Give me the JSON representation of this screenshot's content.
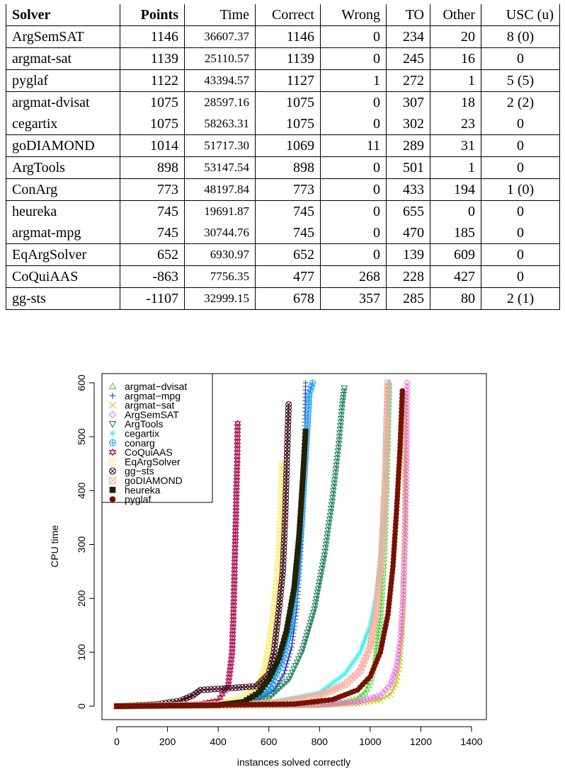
{
  "table": {
    "headers": [
      "Solver",
      "Points",
      "Time",
      "Correct",
      "Wrong",
      "TO",
      "Other",
      "USC (u)"
    ],
    "rows": [
      [
        "ArgSemSAT",
        "1146",
        "36607.37",
        "1146",
        "0",
        "234",
        "20",
        "8 (0)"
      ],
      [
        "argmat-sat",
        "1139",
        "25110.57",
        "1139",
        "0",
        "245",
        "16",
        "0"
      ],
      [
        "pyglaf",
        "1122",
        "43394.57",
        "1127",
        "1",
        "272",
        "1",
        "5 (5)"
      ],
      [
        "argmat-dvisat",
        "1075",
        "28597.16",
        "1075",
        "0",
        "307",
        "18",
        "2 (2)"
      ],
      [
        "cegartix",
        "1075",
        "58263.31",
        "1075",
        "0",
        "302",
        "23",
        "0"
      ],
      [
        "goDIAMOND",
        "1014",
        "51717.30",
        "1069",
        "11",
        "289",
        "31",
        "0"
      ],
      [
        "ArgTools",
        "898",
        "53147.54",
        "898",
        "0",
        "501",
        "1",
        "0"
      ],
      [
        "ConArg",
        "773",
        "48197.84",
        "773",
        "0",
        "433",
        "194",
        "1 (0)"
      ],
      [
        "heureka",
        "745",
        "19691.87",
        "745",
        "0",
        "655",
        "0",
        "0"
      ],
      [
        "argmat-mpg",
        "745",
        "30744.76",
        "745",
        "0",
        "470",
        "185",
        "0"
      ],
      [
        "EqArgSolver",
        "652",
        "6930.97",
        "652",
        "0",
        "139",
        "609",
        "0"
      ],
      [
        "CoQuiAAS",
        "-863",
        "7756.35",
        "477",
        "268",
        "228",
        "427",
        "0"
      ],
      [
        "gg-sts",
        "-1107",
        "32999.15",
        "678",
        "357",
        "285",
        "80",
        "2 (1)"
      ]
    ],
    "separator_after_rows": [
      0,
      1,
      2,
      4,
      5,
      6,
      7,
      9,
      10,
      11
    ]
  },
  "chart_data": {
    "type": "scatter",
    "xlabel": "instances solved correctly",
    "ylabel": "CPU time",
    "xlim": [
      0,
      1400
    ],
    "ylim": [
      0,
      600
    ],
    "xticks": [
      0,
      200,
      400,
      600,
      800,
      1000,
      1200,
      1400
    ],
    "yticks": [
      0,
      100,
      200,
      300,
      400,
      500,
      600
    ],
    "legend_position": "top-left",
    "series": [
      {
        "name": "argmat−dvisat",
        "marker": "triangle-up",
        "color": "#44cc33",
        "x": [
          0,
          800,
          900,
          950,
          980,
          1000,
          1020,
          1040,
          1055,
          1065,
          1075
        ],
        "y": [
          0,
          3,
          7,
          14,
          25,
          45,
          85,
          160,
          280,
          420,
          600
        ]
      },
      {
        "name": "argmat−mpg",
        "marker": "plus",
        "color": "#2233aa",
        "x": [
          0,
          450,
          550,
          620,
          660,
          690,
          710,
          725,
          735,
          742,
          745
        ],
        "y": [
          0,
          3,
          12,
          30,
          60,
          110,
          180,
          280,
          400,
          520,
          600
        ]
      },
      {
        "name": "argmat−sat",
        "marker": "cross",
        "color": "#c0c411",
        "x": [
          0,
          800,
          950,
          1040,
          1080,
          1100,
          1115,
          1125,
          1132,
          1137,
          1139
        ],
        "y": [
          0,
          2,
          5,
          12,
          22,
          40,
          75,
          130,
          220,
          350,
          580
        ]
      },
      {
        "name": "ArgSemSAT",
        "marker": "diamond",
        "color": "#ee66ee",
        "x": [
          0,
          800,
          950,
          1040,
          1080,
          1105,
          1120,
          1130,
          1138,
          1143,
          1146
        ],
        "y": [
          0,
          3,
          8,
          20,
          40,
          75,
          130,
          200,
          320,
          450,
          600
        ]
      },
      {
        "name": "ArgTools",
        "marker": "triangle-down",
        "color": "#117755",
        "x": [
          0,
          450,
          600,
          680,
          730,
          780,
          820,
          850,
          875,
          890,
          898
        ],
        "y": [
          0,
          3,
          15,
          50,
          100,
          180,
          280,
          380,
          480,
          560,
          590
        ]
      },
      {
        "name": "cegartix",
        "marker": "asterisk",
        "color": "#44eeee",
        "x": [
          0,
          600,
          800,
          900,
          960,
          1000,
          1025,
          1045,
          1060,
          1070,
          1075
        ],
        "y": [
          0,
          5,
          25,
          60,
          100,
          150,
          210,
          300,
          410,
          520,
          600
        ]
      },
      {
        "name": "conarg",
        "marker": "circle-plus",
        "color": "#1199ee",
        "x": [
          0,
          500,
          600,
          650,
          690,
          715,
          730,
          740,
          750,
          760,
          773
        ],
        "y": [
          0,
          5,
          30,
          80,
          150,
          250,
          340,
          420,
          500,
          580,
          600
        ]
      },
      {
        "name": "CoQuiAAS",
        "marker": "star6",
        "color": "#aa1155",
        "x": [
          0,
          300,
          400,
          440,
          455,
          462,
          467,
          470,
          472,
          475,
          477
        ],
        "y": [
          0,
          2,
          10,
          40,
          100,
          200,
          300,
          350,
          400,
          450,
          525
        ]
      },
      {
        "name": "EqArgSolver",
        "marker": "square-plus",
        "color": "#ffee77",
        "x": [
          0,
          400,
          500,
          560,
          590,
          610,
          625,
          637,
          645,
          650,
          652
        ],
        "y": [
          0,
          3,
          15,
          40,
          80,
          140,
          200,
          260,
          330,
          400,
          450
        ]
      },
      {
        "name": "gg−sts",
        "marker": "circle-x",
        "color": "#330011",
        "x": [
          0,
          150,
          250,
          300,
          330,
          400,
          550,
          600,
          620,
          640,
          655,
          665,
          672,
          678
        ],
        "y": [
          0,
          3,
          10,
          20,
          30,
          32,
          37,
          60,
          100,
          180,
          250,
          360,
          470,
          560
        ]
      },
      {
        "name": "goDIAMOND",
        "marker": "square-x",
        "color": "#ffaa99",
        "x": [
          0,
          600,
          800,
          900,
          960,
          1000,
          1025,
          1045,
          1060,
          1069
        ],
        "y": [
          0,
          5,
          20,
          40,
          65,
          110,
          180,
          280,
          430,
          600
        ]
      },
      {
        "name": "heureka",
        "marker": "square",
        "color": "#222200",
        "x": [
          0,
          400,
          500,
          560,
          600,
          640,
          670,
          700,
          720,
          735,
          745
        ],
        "y": [
          0,
          2,
          8,
          25,
          50,
          90,
          140,
          220,
          320,
          430,
          510
        ]
      },
      {
        "name": "pyglaf",
        "marker": "dot",
        "color": "#771100",
        "x": [
          0,
          700,
          850,
          950,
          1000,
          1040,
          1070,
          1090,
          1105,
          1118,
          1127
        ],
        "y": [
          0,
          4,
          12,
          30,
          55,
          100,
          170,
          260,
          370,
          480,
          585
        ]
      }
    ]
  }
}
